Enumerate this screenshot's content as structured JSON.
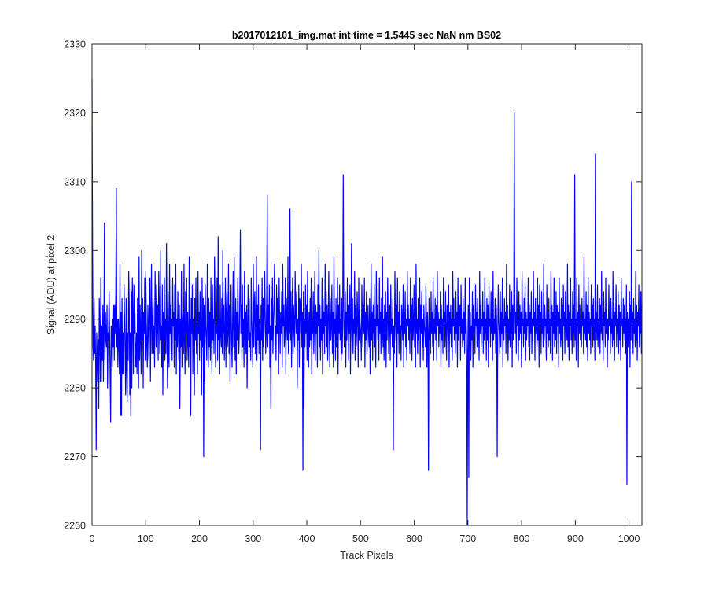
{
  "chart_data": {
    "type": "line",
    "title": "b2017012101_img.mat int time = 1.5445 sec  NaN nm BS02",
    "xlabel": "Track Pixels",
    "ylabel": "Signal (ADU) at pixel 2",
    "xlim": [
      0,
      1024
    ],
    "ylim": [
      2260,
      2330
    ],
    "xticks": [
      0,
      100,
      200,
      300,
      400,
      500,
      600,
      700,
      800,
      900,
      1000
    ],
    "yticks": [
      2260,
      2270,
      2280,
      2290,
      2300,
      2310,
      2320,
      2330
    ],
    "grid": false,
    "legend": "none",
    "series_color": "#0000ff",
    "series": [
      {
        "values": [
          2325,
          2301,
          2286,
          2284,
          2293,
          2285,
          2289,
          2284,
          2271,
          2288,
          2285,
          2281,
          2287,
          2277,
          2293,
          2288,
          2281,
          2296,
          2281,
          2289,
          2284,
          2292,
          2281,
          2289,
          2304,
          2284,
          2291,
          2287,
          2286,
          2292,
          2280,
          2288,
          2287,
          2294,
          2288,
          2282,
          2275,
          2289,
          2287,
          2283,
          2290,
          2286,
          2292,
          2284,
          2292,
          2288,
          2294,
          2309,
          2286,
          2290,
          2283,
          2290,
          2287,
          2282,
          2298,
          2276,
          2291,
          2276,
          2293,
          2282,
          2288,
          2282,
          2295,
          2290,
          2285,
          2279,
          2293,
          2283,
          2278,
          2288,
          2284,
          2297,
          2292,
          2279,
          2288,
          2276,
          2294,
          2280,
          2296,
          2290,
          2282,
          2295,
          2288,
          2291,
          2285,
          2283,
          2288,
          2282,
          2293,
          2286,
          2280,
          2299,
          2284,
          2292,
          2287,
          2282,
          2300,
          2287,
          2293,
          2280,
          2291,
          2288,
          2296,
          2284,
          2297,
          2290,
          2286,
          2283,
          2292,
          2289,
          2284,
          2293,
          2296,
          2281,
          2290,
          2298,
          2285,
          2288,
          2293,
          2285,
          2289,
          2283,
          2297,
          2291,
          2286,
          2295,
          2288,
          2292,
          2284,
          2297,
          2291,
          2285,
          2300,
          2287,
          2289,
          2283,
          2295,
          2279,
          2291,
          2287,
          2296,
          2284,
          2290,
          2285,
          2301,
          2289,
          2280,
          2294,
          2286,
          2283,
          2298,
          2288,
          2292,
          2285,
          2290,
          2284,
          2296,
          2289,
          2291,
          2283,
          2295,
          2287,
          2298,
          2282,
          2290,
          2286,
          2294,
          2288,
          2284,
          2292,
          2277,
          2290,
          2286,
          2297,
          2283,
          2289,
          2291,
          2285,
          2298,
          2287,
          2282,
          2294,
          2288,
          2296,
          2284,
          2291,
          2287,
          2283,
          2299,
          2286,
          2290,
          2276,
          2293,
          2288,
          2295,
          2282,
          2290,
          2286,
          2279,
          2293,
          2287,
          2296,
          2285,
          2289,
          2282,
          2297,
          2288,
          2291,
          2284,
          2294,
          2287,
          2290,
          2279,
          2296,
          2286,
          2293,
          2270,
          2292,
          2281,
          2295,
          2289,
          2287,
          2284,
          2298,
          2290,
          2283,
          2293,
          2286,
          2291,
          2284,
          2296,
          2288,
          2282,
          2295,
          2287,
          2290,
          2285,
          2299,
          2292,
          2283,
          2289,
          2288,
          2296,
          2284,
          2302,
          2287,
          2290,
          2282,
          2295,
          2288,
          2286,
          2293,
          2285,
          2300,
          2288,
          2292,
          2284,
          2287,
          2296,
          2283,
          2291,
          2294,
          2286,
          2288,
          2298,
          2285,
          2292,
          2281,
          2289,
          2295,
          2287,
          2283,
          2290,
          2297,
          2286,
          2299,
          2288,
          2284,
          2293,
          2282,
          2291,
          2287,
          2296,
          2290,
          2285,
          2288,
          2294,
          2303,
          2288,
          2292,
          2284,
          2295,
          2286,
          2290,
          2283,
          2297,
          2288,
          2291,
          2285,
          2292,
          2280,
          2289,
          2295,
          2287,
          2293,
          2286,
          2288,
          2284,
          2296,
          2290,
          2287,
          2283,
          2298,
          2286,
          2292,
          2294,
          2285,
          2289,
          2299,
          2284,
          2292,
          2287,
          2295,
          2285,
          2290,
          2288,
          2271,
          2292,
          2287,
          2296,
          2284,
          2293,
          2286,
          2289,
          2297,
          2291,
          2285,
          2288,
          2294,
          2308,
          2286,
          2292,
          2288,
          2295,
          2283,
          2289,
          2277,
          2293,
          2287,
          2296,
          2285,
          2290,
          2292,
          2298,
          2286,
          2289,
          2284,
          2295,
          2288,
          2293,
          2287,
          2282,
          2296,
          2290,
          2285,
          2291,
          2288,
          2294,
          2283,
          2298,
          2289,
          2292,
          2286,
          2288,
          2296,
          2282,
          2293,
          2290,
          2287,
          2299,
          2285,
          2291,
          2288,
          2306,
          2287,
          2294,
          2283,
          2290,
          2296,
          2285,
          2292,
          2289,
          2286,
          2297,
          2291,
          2288,
          2294,
          2280,
          2290,
          2287,
          2295,
          2283,
          2293,
          2292,
          2288,
          2298,
          2286,
          2291,
          2268,
          2294,
          2277,
          2290,
          2286,
          2295,
          2288,
          2292,
          2284,
          2297,
          2289,
          2283,
          2291,
          2286,
          2293,
          2287,
          2296,
          2282,
          2290,
          2288,
          2294,
          2285,
          2289,
          2297,
          2284,
          2292,
          2288,
          2291,
          2283,
          2295,
          2289,
          2300,
          2286,
          2292,
          2284,
          2290,
          2287,
          2296,
          2282,
          2293,
          2288,
          2291,
          2285,
          2298,
          2289,
          2294,
          2286,
          2292,
          2284,
          2290,
          2297,
          2288,
          2283,
          2293,
          2287,
          2289,
          2295,
          2285,
          2291,
          2283,
          2299,
          2288,
          2290,
          2284,
          2293,
          2286,
          2289,
          2296,
          2282,
          2292,
          2288,
          2295,
          2287,
          2290,
          2284,
          2293,
          2285,
          2289,
          2311,
          2292,
          2286,
          2288,
          2294,
          2283,
          2291,
          2287,
          2296,
          2290,
          2284,
          2292,
          2288,
          2295,
          2282,
          2289,
          2301,
          2287,
          2293,
          2285,
          2290,
          2288,
          2297,
          2284,
          2292,
          2286,
          2288,
          2294,
          2290,
          2283,
          2296,
          2287,
          2291,
          2289,
          2288,
          2284,
          2295,
          2290,
          2286,
          2292,
          2288,
          2296,
          2283,
          2291,
          2287,
          2294,
          2285,
          2289,
          2292,
          2288,
          2286,
          2293,
          2282,
          2290,
          2298,
          2287,
          2291,
          2284,
          2292,
          2288,
          2295,
          2286,
          2290,
          2283,
          2297,
          2289,
          2292,
          2287,
          2290,
          2284,
          2296,
          2288,
          2291,
          2285,
          2293,
          2287,
          2299,
          2286,
          2290,
          2284,
          2292,
          2288,
          2294,
          2283,
          2291,
          2287,
          2296,
          2290,
          2285,
          2289,
          2292,
          2284,
          2295,
          2288,
          2290,
          2286,
          2293,
          2271,
          2289,
          2285,
          2297,
          2290,
          2287,
          2292,
          2283,
          2296,
          2288,
          2291,
          2285,
          2294,
          2288,
          2289,
          2284,
          2292,
          2290,
          2287,
          2295,
          2283,
          2291,
          2288,
          2294,
          2286,
          2290,
          2284,
          2297,
          2289,
          2292,
          2287,
          2290,
          2285,
          2296,
          2288,
          2292,
          2284,
          2293,
          2287,
          2289,
          2295,
          2286,
          2291,
          2283,
          2298,
          2288,
          2290,
          2285,
          2293,
          2287,
          2290,
          2296,
          2283,
          2292,
          2288,
          2294,
          2286,
          2290,
          2284,
          2292,
          2289,
          2288,
          2286,
          2295,
          2290,
          2283,
          2291,
          2288,
          2268,
          2293,
          2287,
          2290,
          2285,
          2294,
          2288,
          2291,
          2286,
          2296,
          2284,
          2290,
          2288,
          2293,
          2287,
          2292,
          2284,
          2297,
          2289,
          2291,
          2286,
          2290,
          2288,
          2294,
          2283,
          2292,
          2287,
          2290,
          2285,
          2296,
          2289,
          2291,
          2286,
          2294,
          2288,
          2284,
          2292,
          2290,
          2287,
          2295,
          2283,
          2291,
          2288,
          2292,
          2286,
          2290,
          2284,
          2297,
          2289,
          2293,
          2287,
          2290,
          2285,
          2294,
          2288,
          2291,
          2283,
          2296,
          2287,
          2290,
          2289,
          2292,
          2284,
          2295,
          2288,
          2290,
          2286,
          2293,
          2287,
          2291,
          2285,
          2296,
          2288,
          2290,
          2284,
          2260,
          2285,
          2292,
          2267,
          2296,
          2288,
          2291,
          2284,
          2289,
          2287,
          2294,
          2283,
          2292,
          2288,
          2290,
          2285,
          2295,
          2289,
          2291,
          2286,
          2293,
          2287,
          2290,
          2284,
          2297,
          2288,
          2292,
          2286,
          2290,
          2289,
          2294,
          2285,
          2291,
          2287,
          2296,
          2288,
          2290,
          2284,
          2293,
          2287,
          2292,
          2283,
          2295,
          2289,
          2290,
          2286,
          2294,
          2288,
          2291,
          2284,
          2297,
          2287,
          2290,
          2288,
          2293,
          2285,
          2292,
          2289,
          2270,
          2287,
          2295,
          2290,
          2288,
          2285,
          2294,
          2286,
          2291,
          2288,
          2296,
          2283,
          2290,
          2287,
          2293,
          2289,
          2291,
          2285,
          2298,
          2288,
          2292,
          2284,
          2290,
          2287,
          2295,
          2286,
          2291,
          2288,
          2294,
          2283,
          2292,
          2287,
          2290,
          2320,
          2293,
          2288,
          2291,
          2285,
          2296,
          2289,
          2290,
          2284,
          2294,
          2287,
          2292,
          2288,
          2291,
          2283,
          2297,
          2289,
          2290,
          2286,
          2293,
          2288,
          2295,
          2284,
          2291,
          2287,
          2290,
          2289,
          2296,
          2286,
          2292,
          2284,
          2291,
          2288,
          2294,
          2285,
          2290,
          2287,
          2297,
          2289,
          2291,
          2284,
          2293,
          2288,
          2290,
          2286,
          2296,
          2287,
          2292,
          2283,
          2295,
          2289,
          2291,
          2285,
          2294,
          2288,
          2290,
          2286,
          2298,
          2287,
          2292,
          2289,
          2290,
          2284,
          2295,
          2288,
          2291,
          2286,
          2293,
          2287,
          2290,
          2285,
          2297,
          2289,
          2292,
          2284,
          2291,
          2288,
          2296,
          2286,
          2290,
          2287,
          2294,
          2285,
          2292,
          2289,
          2291,
          2283,
          2296,
          2288,
          2290,
          2286,
          2293,
          2287,
          2292,
          2284,
          2295,
          2289,
          2291,
          2285,
          2294,
          2288,
          2290,
          2287,
          2298,
          2286,
          2292,
          2284,
          2291,
          2289,
          2296,
          2287,
          2290,
          2285,
          2294,
          2288,
          2292,
          2286,
          2311,
          2287,
          2290,
          2284,
          2296,
          2289,
          2291,
          2283,
          2295,
          2288,
          2292,
          2287,
          2290,
          2286,
          2293,
          2289,
          2291,
          2285,
          2299,
          2288,
          2290,
          2287,
          2294,
          2286,
          2292,
          2284,
          2296,
          2288,
          2291,
          2287,
          2290,
          2285,
          2295,
          2289,
          2292,
          2286,
          2293,
          2287,
          2290,
          2284,
          2314,
          2288,
          2291,
          2287,
          2295,
          2286,
          2290,
          2289,
          2293,
          2285,
          2292,
          2288,
          2297,
          2287,
          2290,
          2284,
          2294,
          2289,
          2291,
          2286,
          2296,
          2288,
          2292,
          2283,
          2290,
          2287,
          2295,
          2289,
          2291,
          2285,
          2293,
          2288,
          2290,
          2286,
          2297,
          2287,
          2292,
          2284,
          2291,
          2289,
          2295,
          2286,
          2290,
          2288,
          2294,
          2285,
          2292,
          2287,
          2291,
          2284,
          2296,
          2289,
          2290,
          2286,
          2293,
          2288,
          2292,
          2287,
          2290,
          2285,
          2295,
          2266,
          2291,
          2286,
          2290,
          2288,
          2294,
          2283,
          2292,
          2287,
          2310,
          2289,
          2291,
          2285,
          2293,
          2288,
          2290,
          2286,
          2297,
          2287,
          2292,
          2284,
          2291,
          2289,
          2295,
          2286,
          2290,
          2288,
          2294,
          2285,
          2292
        ]
      }
    ]
  }
}
